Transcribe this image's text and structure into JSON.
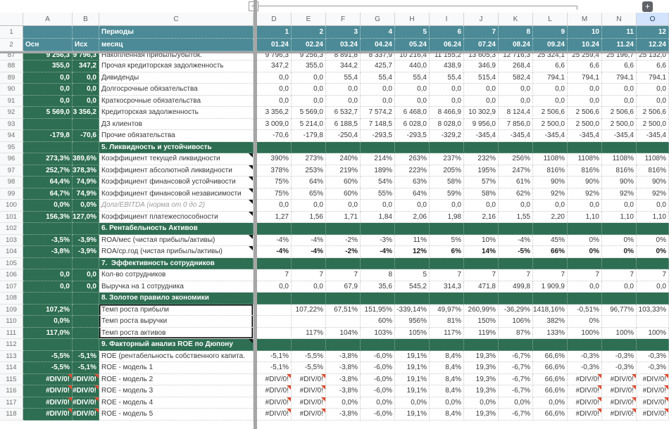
{
  "colors": {
    "teal": "#4b8a96",
    "green": "#2e6e52",
    "selected_column": "#d3e3fd",
    "error_red": "#e04a2f"
  },
  "group_controls": {
    "collapse_glyph": "−",
    "expand_glyph": "+"
  },
  "columns": {
    "letters": [
      "A",
      "B",
      "C",
      "D",
      "E",
      "F",
      "G",
      "H",
      "I",
      "J",
      "K",
      "L",
      "M",
      "N",
      "O"
    ],
    "selected": "O"
  },
  "header": {
    "row1_num": "1",
    "periods_label": "Периоды",
    "period_numbers": [
      "1",
      "2",
      "3",
      "4",
      "5",
      "6",
      "7",
      "8",
      "9",
      "10",
      "11",
      "12"
    ],
    "row2_num": "2",
    "a_label": "Осн",
    "b_label": "Исх",
    "c_label": "месяц",
    "months": [
      "01.24",
      "02.24",
      "03.24",
      "04.24",
      "05.24",
      "06.24",
      "07.24",
      "08.24",
      "09.24",
      "10.24",
      "11.24",
      "12.24"
    ]
  },
  "rows": [
    {
      "num": "87",
      "type": "data",
      "partial": true,
      "label": "Накопленная прибыль/убыток.",
      "a": "9 256,3",
      "b": "9 796,3",
      "values": [
        "9 796,3",
        "9 256,3",
        "8 891,8",
        "8 337,9",
        "10 216,4",
        "11 155,2",
        "13 605,3",
        "12 716,3",
        "25 324,1",
        "25 259,4",
        "25 196,7",
        "25 132,0"
      ]
    },
    {
      "num": "88",
      "type": "data",
      "label": "Прочая кредиторская задолженность",
      "a": "355,0",
      "b": "347,2",
      "values": [
        "347,2",
        "355,0",
        "344,2",
        "425,7",
        "440,0",
        "438,9",
        "346,9",
        "268,4",
        "6,6",
        "6,6",
        "6,6",
        "6,6"
      ]
    },
    {
      "num": "89",
      "type": "data",
      "label": "Дивиденды",
      "a": "0,0",
      "b": "0,0",
      "values": [
        "0,0",
        "0,0",
        "55,4",
        "55,4",
        "55,4",
        "55,4",
        "515,4",
        "582,4",
        "794,1",
        "794,1",
        "794,1",
        "794,1"
      ]
    },
    {
      "num": "90",
      "type": "data",
      "label": "Долгосрочные обязательства",
      "a": "0,0",
      "b": "0,0",
      "values": [
        "0,0",
        "0,0",
        "0,0",
        "0,0",
        "0,0",
        "0,0",
        "0,0",
        "0,0",
        "0,0",
        "0,0",
        "0,0",
        "0,0"
      ]
    },
    {
      "num": "91",
      "type": "data",
      "label": "Краткосрочные обязательства",
      "a": "0,0",
      "b": "0,0",
      "values": [
        "0,0",
        "0,0",
        "0,0",
        "0,0",
        "0,0",
        "0,0",
        "0,0",
        "0,0",
        "0,0",
        "0,0",
        "0,0",
        "0,0"
      ]
    },
    {
      "num": "92",
      "type": "data",
      "label": "Кредиторская задолженность",
      "a": "5 569,0",
      "b": "3 356,2",
      "values": [
        "3 356,2",
        "5 569,0",
        "6 532,7",
        "7 574,2",
        "6 468,0",
        "8 466,9",
        "10 302,9",
        "8 124,4",
        "2 506,6",
        "2 506,6",
        "2 506,6",
        "2 506,6"
      ]
    },
    {
      "num": "93",
      "type": "data",
      "label": "ДЗ клиентов",
      "a": "",
      "b": "",
      "values": [
        "3 009,0",
        "5 214,0",
        "6 188,5",
        "7 148,5",
        "6 028,0",
        "8 028,0",
        "9 956,0",
        "7 856,0",
        "2 500,0",
        "2 500,0",
        "2 500,0",
        "2 500,0"
      ]
    },
    {
      "num": "94",
      "type": "data",
      "label": "Прочие обязательства",
      "a": "-179,8",
      "b": "-70,6",
      "values": [
        "-70,6",
        "-179,8",
        "-250,4",
        "-293,5",
        "-293,5",
        "-329,2",
        "-345,4",
        "-345,4",
        "-345,4",
        "-345,4",
        "-345,4",
        "-345,4"
      ]
    },
    {
      "num": "95",
      "type": "section",
      "label": "5. Ликвидность и устойчивость"
    },
    {
      "num": "96",
      "type": "data",
      "note": true,
      "label": "Коэффициент текущей ликвидности",
      "a": "273,3%",
      "b": "389,6%",
      "values": [
        "390%",
        "273%",
        "240%",
        "214%",
        "263%",
        "237%",
        "232%",
        "256%",
        "1108%",
        "1108%",
        "1108%",
        "1108%"
      ]
    },
    {
      "num": "97",
      "type": "data",
      "note": true,
      "label": "Коэффициент абсолютной ликвидности",
      "a": "252,7%",
      "b": "378,3%",
      "values": [
        "378%",
        "253%",
        "219%",
        "189%",
        "223%",
        "205%",
        "195%",
        "247%",
        "816%",
        "816%",
        "816%",
        "816%"
      ]
    },
    {
      "num": "98",
      "type": "data",
      "note": true,
      "label": "Коэффициент финансовой устойчивости",
      "a": "64,4%",
      "b": "74,9%",
      "values": [
        "75%",
        "64%",
        "60%",
        "54%",
        "63%",
        "58%",
        "57%",
        "61%",
        "90%",
        "90%",
        "90%",
        "90%"
      ]
    },
    {
      "num": "99",
      "type": "data",
      "note": true,
      "label": "Коэффициент финансовой независимости",
      "a": "64,7%",
      "b": "74,9%",
      "values": [
        "75%",
        "65%",
        "60%",
        "55%",
        "64%",
        "59%",
        "58%",
        "62%",
        "92%",
        "92%",
        "92%",
        "92%"
      ]
    },
    {
      "num": "100",
      "type": "data",
      "note": true,
      "muted": true,
      "label": "Долг/EBITDA (норма от 0 до 2)",
      "a": "0,0%",
      "b": "0,0%",
      "values": [
        "0,0",
        "0,0",
        "0,0",
        "0,0",
        "0,0",
        "0,0",
        "0,0",
        "0,0",
        "0,0",
        "0,0",
        "0,0",
        "0,0"
      ]
    },
    {
      "num": "101",
      "type": "data",
      "note": true,
      "label": "Коэффициент платежеспособности",
      "a": "156,3%",
      "b": "127,0%",
      "values": [
        "1,27",
        "1,56",
        "1,71",
        "1,84",
        "2,06",
        "1,98",
        "2,16",
        "1,55",
        "2,20",
        "1,10",
        "1,10",
        "1,10"
      ]
    },
    {
      "num": "102",
      "type": "section",
      "label": "6. Рентабельность Активов"
    },
    {
      "num": "103",
      "type": "data",
      "note": true,
      "label": "ROA/мес (чистая прибыль/активы)",
      "a": "-3,5%",
      "b": "-3,9%",
      "values": [
        "-4%",
        "-4%",
        "-2%",
        "-3%",
        "11%",
        "5%",
        "10%",
        "-4%",
        "45%",
        "0%",
        "0%",
        "0%"
      ]
    },
    {
      "num": "104",
      "type": "data",
      "note": true,
      "bold_values": true,
      "label": "ROA/ср.год (чистая прибыль/активы)",
      "a": "-3,8%",
      "b": "-3,9%",
      "values": [
        "-4%",
        "-4%",
        "-2%",
        "-4%",
        "12%",
        "6%",
        "14%",
        "-5%",
        "66%",
        "0%",
        "0%",
        "0%"
      ]
    },
    {
      "num": "105",
      "type": "section",
      "label": "7.  Эффективность сотрудников"
    },
    {
      "num": "106",
      "type": "data",
      "label": "Кол-во сотрудников",
      "a": "0,0",
      "b": "0,0",
      "values": [
        "7",
        "7",
        "7",
        "8",
        "5",
        "7",
        "7",
        "7",
        "7",
        "7",
        "7",
        "7"
      ]
    },
    {
      "num": "107",
      "type": "data",
      "label": "Выручка на 1 сотрудника",
      "a": "0,0",
      "b": "0,0",
      "values": [
        "0,0",
        "0,0",
        "67,9",
        "35,6",
        "545,2",
        "314,3",
        "471,8",
        "499,8",
        "1 909,9",
        "0,0",
        "0,0",
        "0,0"
      ]
    },
    {
      "num": "108",
      "type": "section",
      "label": "8. Золотое правило экономики"
    },
    {
      "num": "109",
      "type": "data",
      "box": "top",
      "label": "Темп роста прибыли",
      "a": "107,2%",
      "b": "",
      "values": [
        "",
        "107,22%",
        "67,51%",
        "151,95%",
        "-339,14%",
        "49,97%",
        "260,99%",
        "-36,29%",
        "-1418,16%",
        "-0,51%",
        "96,77%",
        "103,33%"
      ]
    },
    {
      "num": "110",
      "type": "data",
      "box": "mid",
      "label": "Темп роста выручки",
      "a": "0,0%",
      "b": "",
      "values": [
        "",
        "",
        "",
        "60%",
        "956%",
        "81%",
        "150%",
        "106%",
        "382%",
        "0%",
        "",
        ""
      ]
    },
    {
      "num": "111",
      "type": "data",
      "box": "bot",
      "label": "Темп роста активов",
      "a": "117,0%",
      "b": "",
      "values": [
        "",
        "117%",
        "104%",
        "103%",
        "105%",
        "117%",
        "119%",
        "87%",
        "133%",
        "100%",
        "100%",
        "100%"
      ]
    },
    {
      "num": "112",
      "type": "section",
      "note": true,
      "label": "9. Факторный анализ ROE по Дюпону"
    },
    {
      "num": "113",
      "type": "data",
      "label": "ROE (рентабельность собственного капита.",
      "a": "-5,5%",
      "b": "-5,1%",
      "values": [
        "-5,1%",
        "-5,5%",
        "-3,8%",
        "-6,0%",
        "19,1%",
        "8,4%",
        "19,3%",
        "-6,7%",
        "66,6%",
        "-0,3%",
        "-0,3%",
        "-0,3%"
      ]
    },
    {
      "num": "114",
      "type": "data",
      "label": "ROE - модель 1",
      "a": "-5,5%",
      "b": "-5,1%",
      "values": [
        "-5,1%",
        "-5,5%",
        "-3,8%",
        "-6,0%",
        "19,1%",
        "8,4%",
        "19,3%",
        "-6,7%",
        "66,6%",
        "-0,3%",
        "-0,3%",
        "-0,3%"
      ]
    },
    {
      "num": "115",
      "type": "data",
      "label": "ROE - модель 2",
      "a": "#DIV/0!",
      "b": "#DIV/0!",
      "values": [
        "#DIV/0!",
        "#DIV/0!",
        "-3,8%",
        "-6,0%",
        "19,1%",
        "8,4%",
        "19,3%",
        "-6,7%",
        "66,6%",
        "#DIV/0!",
        "#DIV/0!",
        "#DIV/0!"
      ]
    },
    {
      "num": "116",
      "type": "data",
      "label": "ROE - модель 3",
      "a": "#DIV/0!",
      "b": "#DIV/0!",
      "values": [
        "#DIV/0!",
        "#DIV/0!",
        "-3,8%",
        "-6,0%",
        "19,1%",
        "8,4%",
        "19,3%",
        "-6,7%",
        "66,6%",
        "#DIV/0!",
        "#DIV/0!",
        "#DIV/0!"
      ]
    },
    {
      "num": "117",
      "type": "data",
      "label": "ROE - модель 4",
      "a": "#DIV/0!",
      "b": "#DIV/0!",
      "values": [
        "#DIV/0!",
        "#DIV/0!",
        "0,0%",
        "0,0%",
        "0,0%",
        "0,0%",
        "0,0%",
        "0,0%",
        "0,0%",
        "#DIV/0!",
        "#DIV/0!",
        "#DIV/0!"
      ]
    },
    {
      "num": "118",
      "type": "data",
      "label": "ROE - модель 5",
      "a": "#DIV/0!",
      "b": "#DIV/0!",
      "values": [
        "#DIV/0!",
        "#DIV/0!",
        "-3,8%",
        "-6,0%",
        "19,1%",
        "8,4%",
        "19,3%",
        "-6,7%",
        "66,6%",
        "#DIV/0!",
        "#DIV/0!",
        "#DIV/0!"
      ]
    }
  ]
}
